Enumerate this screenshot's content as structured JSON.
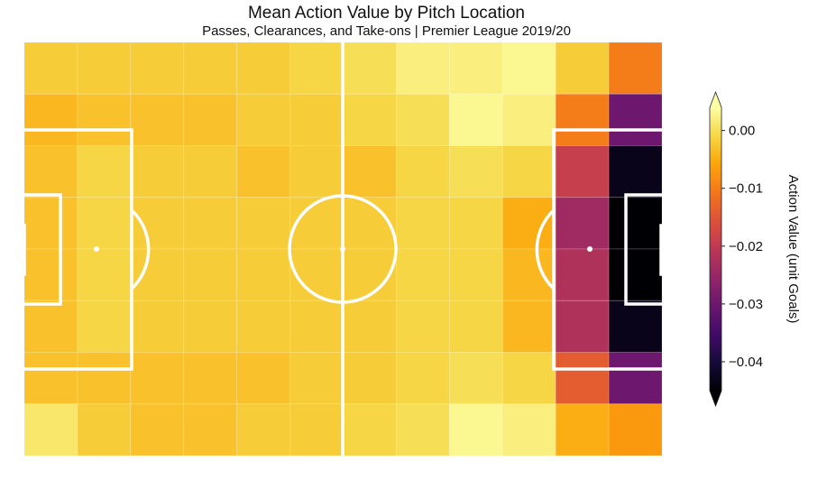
{
  "chart_data": {
    "type": "heatmap",
    "title": "Mean Action Value by Pitch Location",
    "subtitle": "Passes, Clearances, and Take-ons | Premier League 2019/20",
    "colormap": "inferno",
    "pitch_lines_color": "#ffffff",
    "grid": {
      "rows": 8,
      "cols": 12
    },
    "values": [
      [
        -0.002,
        -0.002,
        -0.002,
        -0.002,
        -0.002,
        -0.001,
        0.0,
        0.002,
        0.002,
        0.003,
        -0.002,
        -0.01
      ],
      [
        -0.004,
        -0.003,
        -0.003,
        -0.003,
        -0.002,
        -0.002,
        -0.001,
        0.0,
        0.003,
        0.002,
        -0.01,
        -0.03
      ],
      [
        -0.003,
        -0.001,
        -0.002,
        -0.002,
        -0.003,
        -0.002,
        -0.003,
        -0.001,
        0.0,
        -0.001,
        -0.019,
        -0.043
      ],
      [
        -0.003,
        -0.001,
        -0.002,
        -0.002,
        -0.002,
        -0.002,
        -0.002,
        -0.001,
        -0.001,
        -0.005,
        -0.024,
        -0.046
      ],
      [
        -0.003,
        -0.001,
        -0.002,
        -0.002,
        -0.002,
        -0.002,
        -0.002,
        -0.001,
        -0.001,
        -0.004,
        -0.022,
        -0.046
      ],
      [
        -0.003,
        -0.001,
        -0.002,
        -0.002,
        -0.002,
        -0.002,
        -0.002,
        -0.001,
        -0.001,
        -0.004,
        -0.022,
        -0.043
      ],
      [
        -0.003,
        -0.003,
        -0.003,
        -0.003,
        -0.003,
        -0.002,
        -0.002,
        -0.001,
        0.0,
        -0.001,
        -0.014,
        -0.03
      ],
      [
        0.001,
        -0.002,
        -0.003,
        -0.003,
        -0.002,
        -0.002,
        -0.001,
        0.0,
        0.003,
        0.002,
        -0.005,
        -0.007
      ]
    ],
    "colorbar": {
      "label": "Action Value (unit Goals)",
      "vmin": -0.045,
      "vmax": 0.004,
      "extend": "both",
      "ticks": [
        0.0,
        -0.01,
        -0.02,
        -0.03,
        -0.04
      ],
      "tick_labels": [
        "0.00",
        "−0.01",
        "−0.02",
        "−0.03",
        "−0.04"
      ]
    }
  }
}
